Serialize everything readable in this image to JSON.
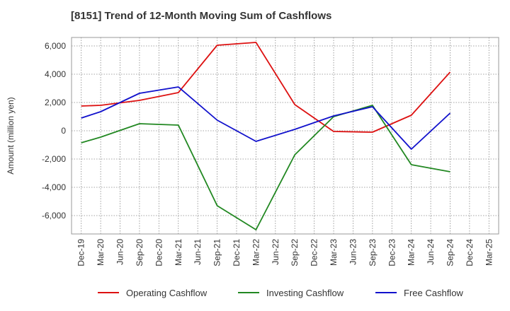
{
  "chart_data": {
    "type": "line",
    "title": "[8151]  Trend of 12-Month Moving Sum of Cashflows",
    "xlabel": "",
    "ylabel": "Amount (million yen)",
    "ylim": [
      -7300,
      6600
    ],
    "yticks": [
      -6000,
      -4000,
      -2000,
      0,
      2000,
      4000,
      6000
    ],
    "ytick_labels": [
      "-6,000",
      "-4,000",
      "-2,000",
      "0",
      "2,000",
      "4,000",
      "6,000"
    ],
    "categories": [
      "Dec-19",
      "Mar-20",
      "Jun-20",
      "Sep-20",
      "Dec-20",
      "Mar-21",
      "Jun-21",
      "Sep-21",
      "Dec-21",
      "Mar-22",
      "Jun-22",
      "Sep-22",
      "Dec-22",
      "Mar-23",
      "Jun-23",
      "Sep-23",
      "Dec-23",
      "Mar-24",
      "Jun-24",
      "Sep-24",
      "Dec-24",
      "Mar-25"
    ],
    "grid": true,
    "legend_position": "bottom",
    "series": [
      {
        "name": "Operating Cashflow",
        "color": "#dd1111",
        "points": [
          {
            "x": "Dec-19",
            "y": 1750
          },
          {
            "x": "Mar-20",
            "y": 1800
          },
          {
            "x": "Sep-20",
            "y": 2150
          },
          {
            "x": "Mar-21",
            "y": 2700
          },
          {
            "x": "Sep-21",
            "y": 6050
          },
          {
            "x": "Mar-22",
            "y": 6250
          },
          {
            "x": "Sep-22",
            "y": 1850
          },
          {
            "x": "Mar-23",
            "y": -50
          },
          {
            "x": "Sep-23",
            "y": -100
          },
          {
            "x": "Mar-24",
            "y": 1100
          },
          {
            "x": "Sep-24",
            "y": 4150
          }
        ]
      },
      {
        "name": "Investing Cashflow",
        "color": "#228822",
        "points": [
          {
            "x": "Dec-19",
            "y": -850
          },
          {
            "x": "Mar-20",
            "y": -450
          },
          {
            "x": "Sep-20",
            "y": 500
          },
          {
            "x": "Mar-21",
            "y": 400
          },
          {
            "x": "Sep-21",
            "y": -5300
          },
          {
            "x": "Mar-22",
            "y": -7000
          },
          {
            "x": "Sep-22",
            "y": -1700
          },
          {
            "x": "Mar-23",
            "y": 1000
          },
          {
            "x": "Sep-23",
            "y": 1800
          },
          {
            "x": "Mar-24",
            "y": -2400
          },
          {
            "x": "Sep-24",
            "y": -2900
          }
        ]
      },
      {
        "name": "Free Cashflow",
        "color": "#1111cc",
        "points": [
          {
            "x": "Dec-19",
            "y": 900
          },
          {
            "x": "Mar-20",
            "y": 1350
          },
          {
            "x": "Sep-20",
            "y": 2650
          },
          {
            "x": "Mar-21",
            "y": 3100
          },
          {
            "x": "Sep-21",
            "y": 750
          },
          {
            "x": "Mar-22",
            "y": -750
          },
          {
            "x": "Sep-22",
            "y": 100
          },
          {
            "x": "Mar-23",
            "y": 1050
          },
          {
            "x": "Sep-23",
            "y": 1700
          },
          {
            "x": "Mar-24",
            "y": -1300
          },
          {
            "x": "Sep-24",
            "y": 1250
          }
        ]
      }
    ]
  }
}
